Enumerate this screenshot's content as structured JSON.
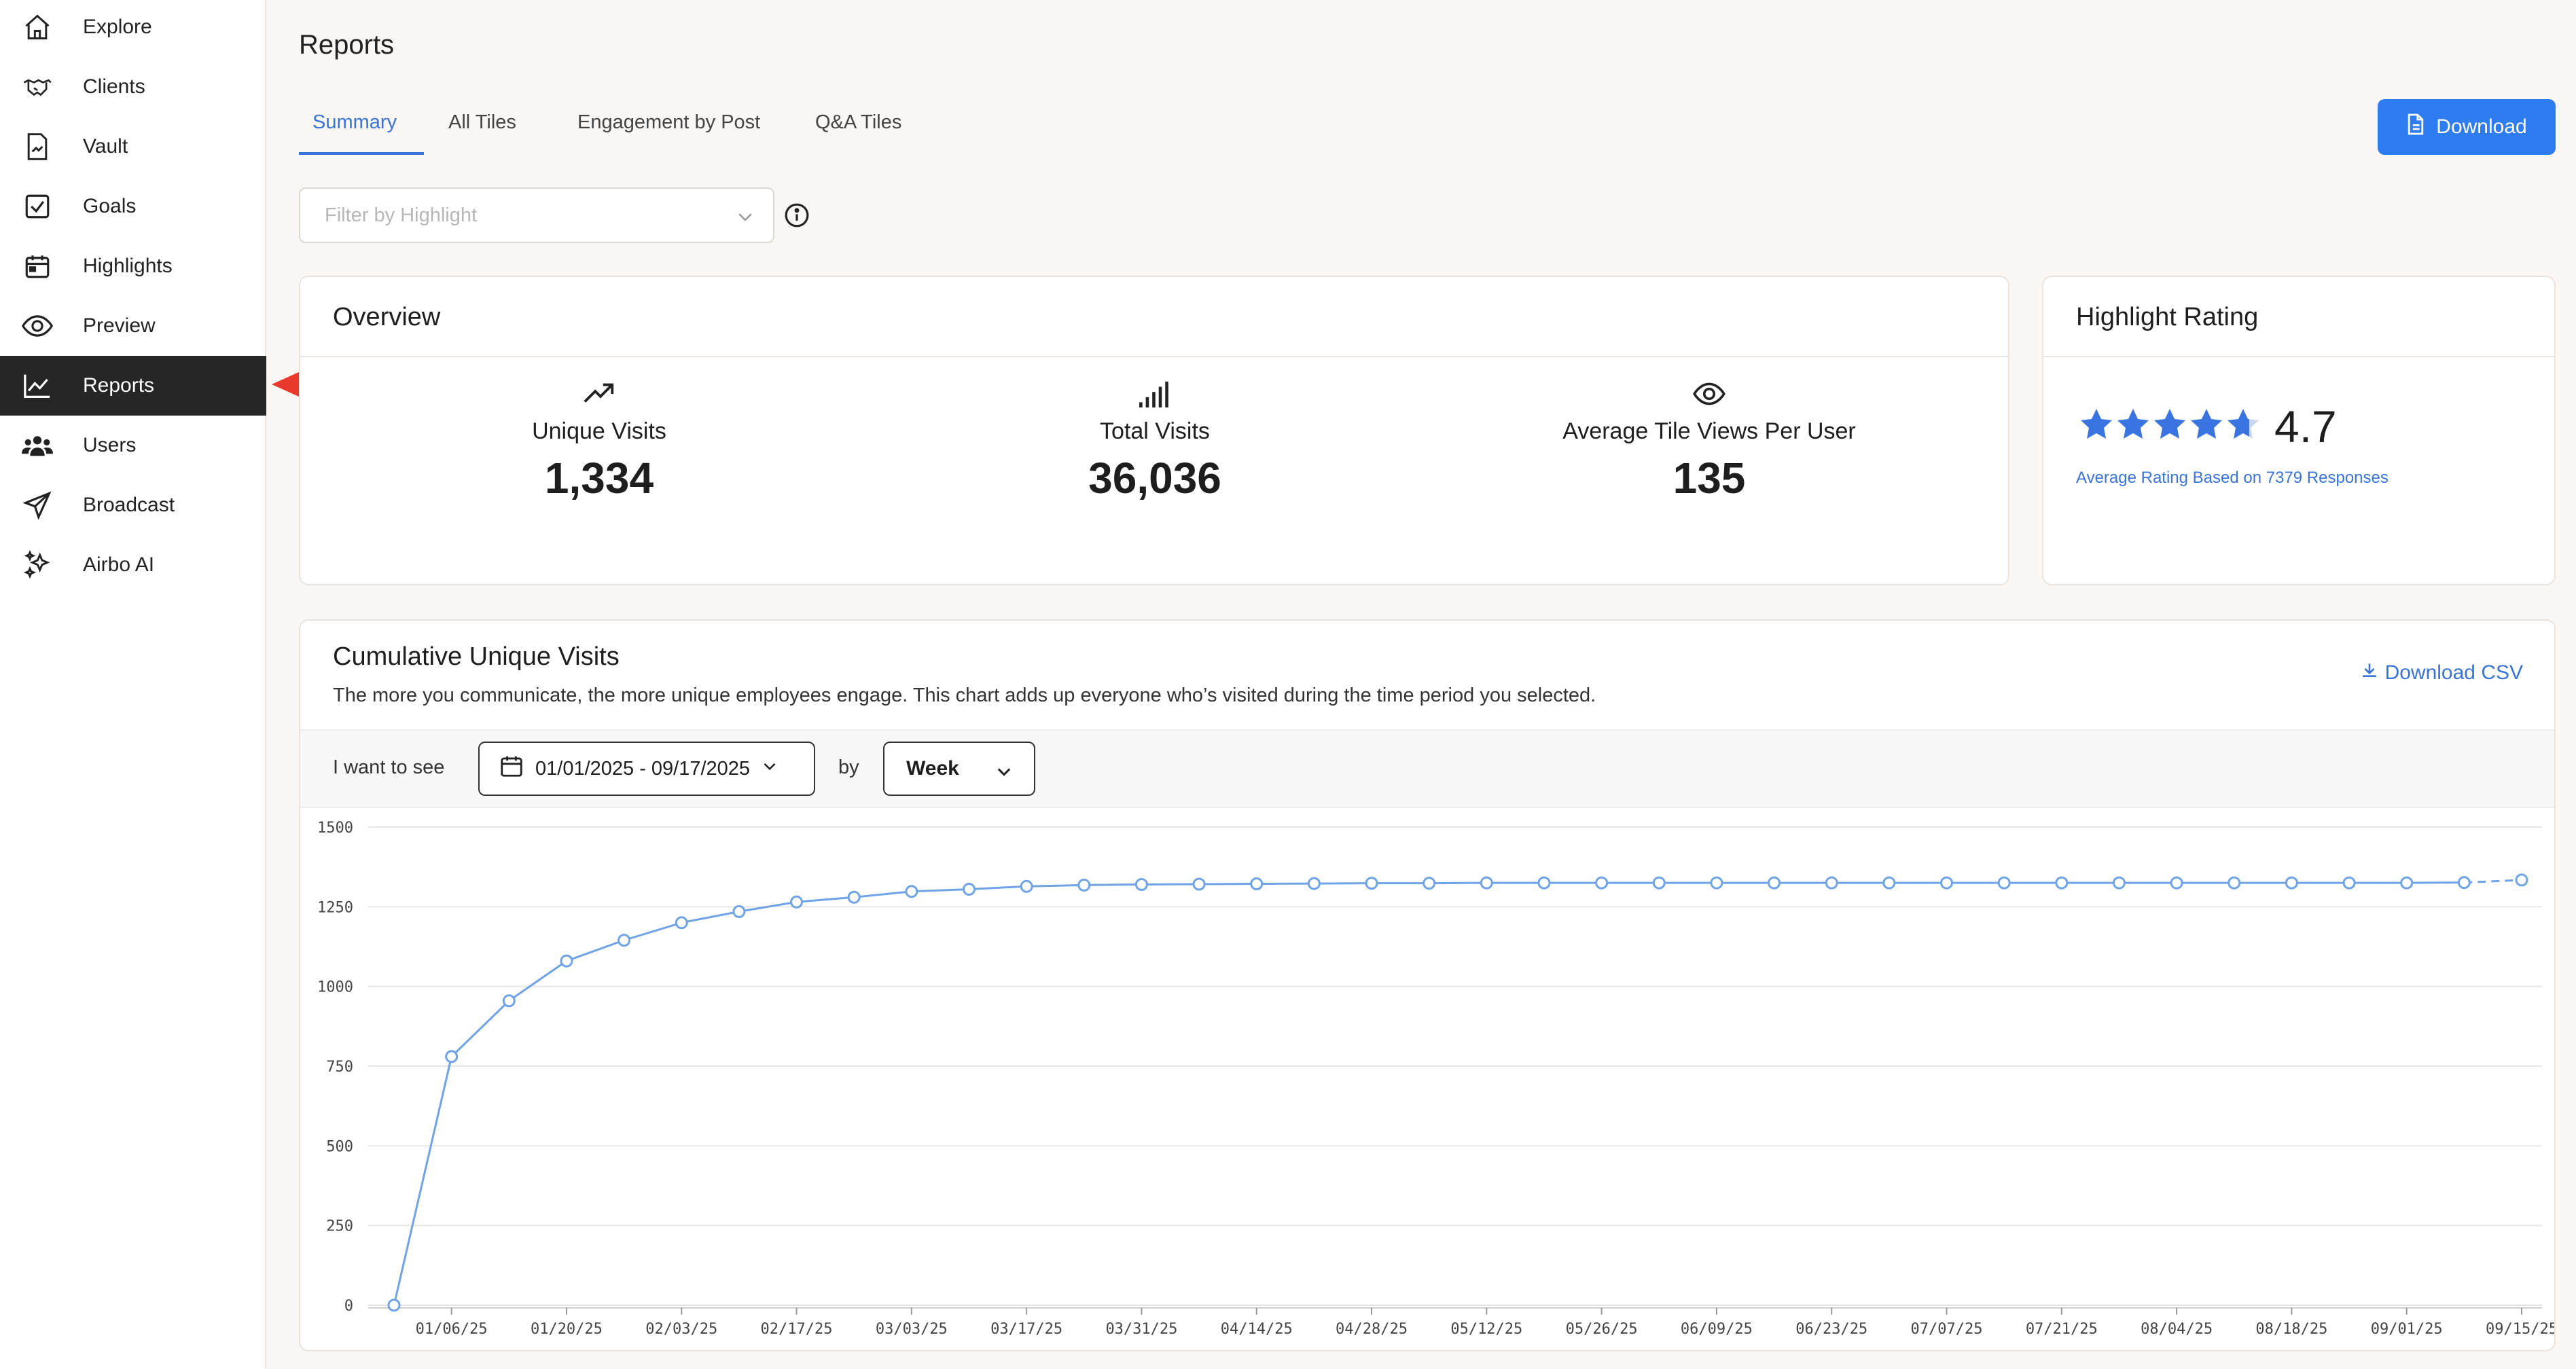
{
  "sidebar": {
    "items": [
      {
        "label": "Explore",
        "icon": "home-icon",
        "active": false
      },
      {
        "label": "Clients",
        "icon": "handshake-icon",
        "active": false
      },
      {
        "label": "Vault",
        "icon": "document-icon",
        "active": false
      },
      {
        "label": "Goals",
        "icon": "checkbox-icon",
        "active": false
      },
      {
        "label": "Highlights",
        "icon": "calendar-icon",
        "active": false
      },
      {
        "label": "Preview",
        "icon": "eye-icon",
        "active": false
      },
      {
        "label": "Reports",
        "icon": "chart-line-icon",
        "active": true
      },
      {
        "label": "Users",
        "icon": "users-icon",
        "active": false
      },
      {
        "label": "Broadcast",
        "icon": "paper-plane-icon",
        "active": false
      },
      {
        "label": "Airbo AI",
        "icon": "sparkles-icon",
        "active": false
      }
    ]
  },
  "page": {
    "title": "Reports"
  },
  "tabs": [
    "Summary",
    "All Tiles",
    "Engagement by Post",
    "Q&A Tiles"
  ],
  "active_tab": "Summary",
  "toolbar": {
    "download_label": "Download"
  },
  "filter": {
    "placeholder": "Filter by Highlight"
  },
  "overview": {
    "title": "Overview",
    "stats": [
      {
        "label": "Unique Visits",
        "value": "1,334",
        "icon": "trend-up-icon"
      },
      {
        "label": "Total Visits",
        "value": "36,036",
        "icon": "signal-bars-icon"
      },
      {
        "label": "Average Tile Views Per User",
        "value": "135",
        "icon": "eye-icon"
      }
    ]
  },
  "rating": {
    "title": "Highlight Rating",
    "value": "4.7",
    "stars": 4.7,
    "caption": "Average Rating Based on 7379 Responses",
    "star_color": "#3a74e0"
  },
  "visits_chart": {
    "title": "Cumulative Unique Visits",
    "description": "The more you communicate, the more unique employees engage. This chart adds up everyone who’s visited during the time period you selected.",
    "csv_label": "Download CSV",
    "want_label": "I want to see",
    "date_range": "01/01/2025 - 09/17/2025",
    "by_label": "by",
    "period": "Week"
  },
  "chart_data": {
    "type": "line",
    "x": [
      "12/30/24",
      "01/06/25",
      "01/13/25",
      "01/20/25",
      "01/27/25",
      "02/03/25",
      "02/10/25",
      "02/17/25",
      "02/24/25",
      "03/03/25",
      "03/10/25",
      "03/17/25",
      "03/24/25",
      "03/31/25",
      "04/07/25",
      "04/14/25",
      "04/21/25",
      "04/28/25",
      "05/05/25",
      "05/12/25",
      "05/19/25",
      "05/26/25",
      "06/02/25",
      "06/09/25",
      "06/16/25",
      "06/23/25",
      "06/30/25",
      "07/07/25",
      "07/14/25",
      "07/21/25",
      "07/28/25",
      "08/04/25",
      "08/11/25",
      "08/18/25",
      "08/25/25",
      "09/01/25",
      "09/08/25",
      "09/15/25"
    ],
    "x_tick_labels": [
      "01/06/25",
      "01/20/25",
      "02/03/25",
      "02/17/25",
      "03/03/25",
      "03/17/25",
      "03/31/25",
      "04/14/25",
      "04/28/25",
      "05/12/25",
      "05/26/25",
      "06/09/25",
      "06/23/25",
      "07/07/25",
      "07/21/25",
      "08/04/25",
      "08/18/25",
      "09/01/25",
      "09/15/25"
    ],
    "series": [
      {
        "values": [
          0,
          780,
          955,
          1080,
          1145,
          1200,
          1235,
          1265,
          1280,
          1298,
          1305,
          1314,
          1318,
          1320,
          1321,
          1322,
          1323,
          1324,
          1324,
          1325,
          1325,
          1325,
          1325,
          1325,
          1325,
          1325,
          1325,
          1325,
          1325,
          1325,
          1325,
          1325,
          1325,
          1325,
          1325,
          1325,
          1326,
          1334
        ],
        "color": "#6fa3e6",
        "last_segment_dashed": true
      }
    ],
    "ylim": [
      0,
      1500
    ],
    "yticks": [
      0,
      250,
      500,
      750,
      1000,
      1250,
      1500
    ],
    "grid": true,
    "legend": "none"
  }
}
